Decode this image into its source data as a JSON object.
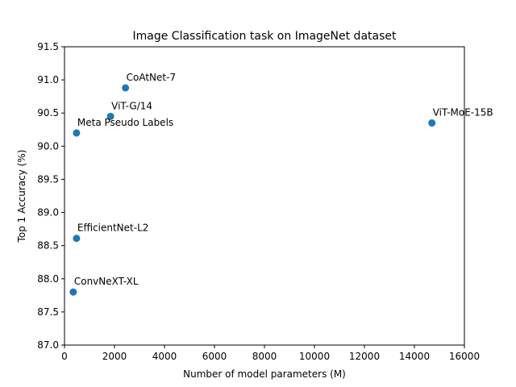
{
  "chart_data": {
    "type": "scatter",
    "title": "Image Classification task on ImageNet dataset",
    "xlabel": "Number of model parameters (M)",
    "ylabel": "Top 1 Accuracy (%)",
    "xlim": [
      0,
      16000
    ],
    "ylim": [
      87.0,
      91.5
    ],
    "xticks": [
      0,
      2000,
      4000,
      6000,
      8000,
      10000,
      12000,
      14000,
      16000
    ],
    "yticks": [
      87.0,
      87.5,
      88.0,
      88.5,
      89.0,
      89.5,
      90.0,
      90.5,
      91.0,
      91.5
    ],
    "grid": false,
    "marker_color": "#1f77b4",
    "points": [
      {
        "label": "CoAtNet-7",
        "x": 2440,
        "y": 90.88
      },
      {
        "label": "ViT-G/14",
        "x": 1843,
        "y": 90.45
      },
      {
        "label": "Meta Pseudo Labels",
        "x": 480,
        "y": 90.2
      },
      {
        "label": "ViT-MoE-15B",
        "x": 14700,
        "y": 90.35
      },
      {
        "label": "EfficientNet-L2",
        "x": 480,
        "y": 88.61
      },
      {
        "label": "ConvNeXT-XL",
        "x": 350,
        "y": 87.8
      }
    ]
  }
}
